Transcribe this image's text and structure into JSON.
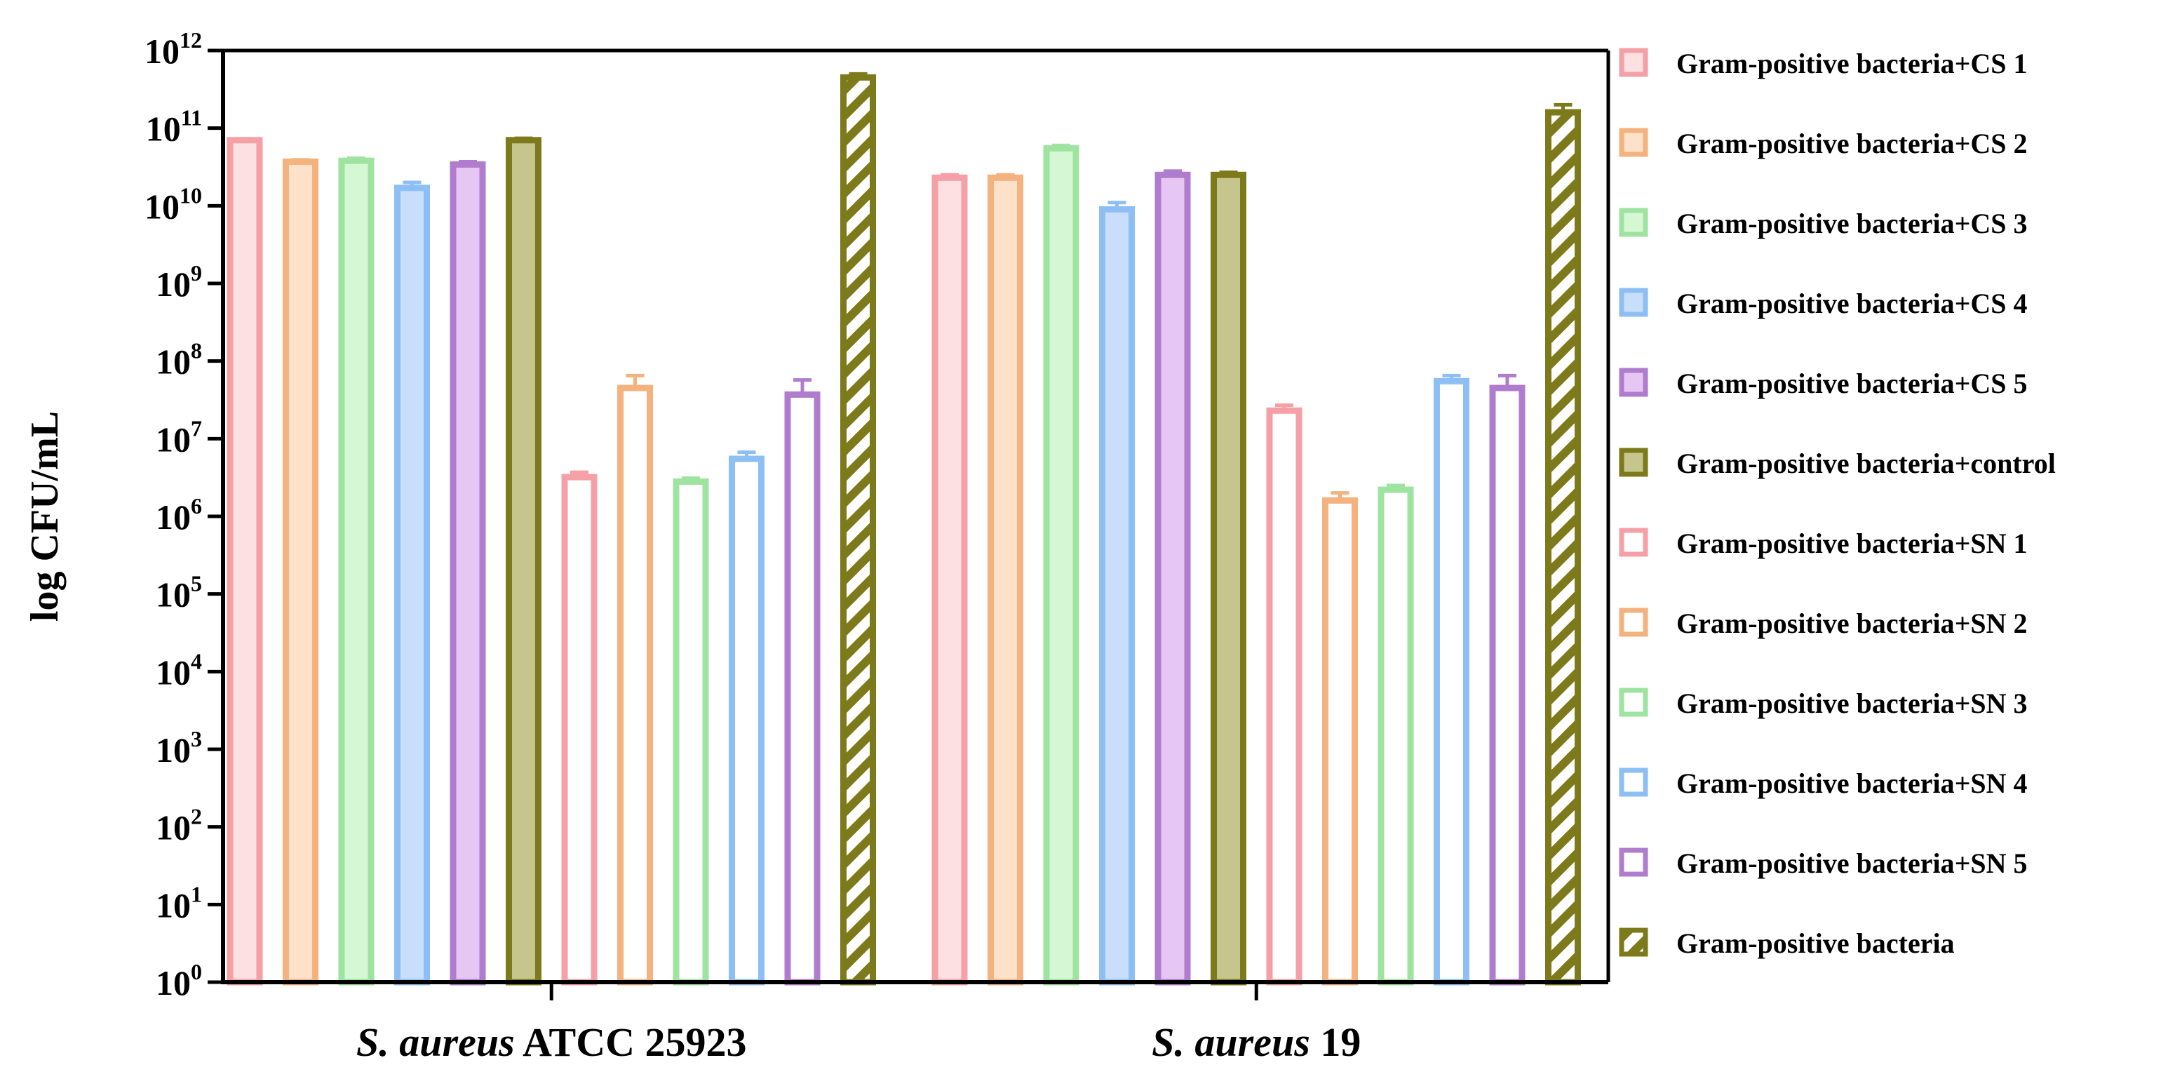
{
  "chart_data": {
    "type": "bar",
    "title": "",
    "xlabel": "",
    "ylabel": "log CFU/mL",
    "yscale": "log",
    "ylim": [
      1,
      1000000000000
    ],
    "yticks": [
      {
        "base": "10",
        "exp": "0"
      },
      {
        "base": "10",
        "exp": "1"
      },
      {
        "base": "10",
        "exp": "2"
      },
      {
        "base": "10",
        "exp": "3"
      },
      {
        "base": "10",
        "exp": "4"
      },
      {
        "base": "10",
        "exp": "5"
      },
      {
        "base": "10",
        "exp": "6"
      },
      {
        "base": "10",
        "exp": "7"
      },
      {
        "base": "10",
        "exp": "8"
      },
      {
        "base": "10",
        "exp": "9"
      },
      {
        "base": "10",
        "exp": "10"
      },
      {
        "base": "10",
        "exp": "11"
      },
      {
        "base": "10",
        "exp": "12"
      }
    ],
    "categories": [
      {
        "italic": "S. aureus",
        "rest": " ATCC 25923"
      },
      {
        "italic": "S. aureus",
        "rest": " 19"
      }
    ],
    "legend_position": "right",
    "series": [
      {
        "name": "Gram-positive bacteria+CS 1",
        "color": "#f4a0a6",
        "fill": "#fde0e2",
        "pattern": "solid",
        "values": [
          70000000000.0,
          23000000000.0
        ],
        "errors": [
          3000000000.0,
          2000000000.0
        ]
      },
      {
        "name": "Gram-positive bacteria+CS 2",
        "color": "#f3b27e",
        "fill": "#fde1c9",
        "pattern": "solid",
        "values": [
          37000000000.0,
          23000000000.0
        ],
        "errors": [
          2000000000.0,
          2000000000.0
        ]
      },
      {
        "name": "Gram-positive bacteria+CS 3",
        "color": "#9fe3a0",
        "fill": "#d6f7d4",
        "pattern": "solid",
        "values": [
          38000000000.0,
          55000000000.0
        ],
        "errors": [
          3000000000.0,
          5000000000.0
        ]
      },
      {
        "name": "Gram-positive bacteria+CS 4",
        "color": "#8ebff4",
        "fill": "#c8defb",
        "pattern": "solid",
        "values": [
          17000000000.0,
          9000000000.0
        ],
        "errors": [
          3000000000.0,
          2000000000.0
        ]
      },
      {
        "name": "Gram-positive bacteria+CS 5",
        "color": "#b07ccd",
        "fill": "#e6c6f2",
        "pattern": "solid",
        "values": [
          34000000000.0,
          25000000000.0
        ],
        "errors": [
          3000000000.0,
          3000000000.0
        ]
      },
      {
        "name": "Gram-positive bacteria+control",
        "color": "#7c7a1a",
        "fill": "#c7c58e",
        "pattern": "solid",
        "values": [
          70000000000.0,
          25000000000.0
        ],
        "errors": [
          4000000000.0,
          2000000000.0
        ]
      },
      {
        "name": "Gram-positive bacteria+SN 1",
        "color": "#f4a0a6",
        "fill": "#ffffff",
        "pattern": "open",
        "values": [
          3200000.0,
          23000000.0
        ],
        "errors": [
          500000.0,
          4000000.0
        ]
      },
      {
        "name": "Gram-positive bacteria+SN 2",
        "color": "#f3b27e",
        "fill": "#ffffff",
        "pattern": "open",
        "values": [
          45000000.0,
          1600000.0
        ],
        "errors": [
          20000000.0,
          400000.0
        ]
      },
      {
        "name": "Gram-positive bacteria+SN 3",
        "color": "#9fe3a0",
        "fill": "#ffffff",
        "pattern": "open",
        "values": [
          2800000.0,
          2200000.0
        ],
        "errors": [
          300000.0,
          300000.0
        ]
      },
      {
        "name": "Gram-positive bacteria+SN 4",
        "color": "#8ebff4",
        "fill": "#ffffff",
        "pattern": "open",
        "values": [
          5500000.0,
          55000000.0
        ],
        "errors": [
          1200000.0,
          10000000.0
        ]
      },
      {
        "name": "Gram-positive bacteria+SN 5",
        "color": "#b07ccd",
        "fill": "#ffffff",
        "pattern": "open",
        "values": [
          37000000.0,
          45000000.0
        ],
        "errors": [
          20000000.0,
          20000000.0
        ]
      },
      {
        "name": "Gram-positive bacteria",
        "color": "#7c7a1a",
        "fill": "#ffffff",
        "pattern": "hatch",
        "values": [
          450000000000.0,
          160000000000.0
        ],
        "errors": [
          50000000000.0,
          40000000000.0
        ]
      }
    ]
  }
}
